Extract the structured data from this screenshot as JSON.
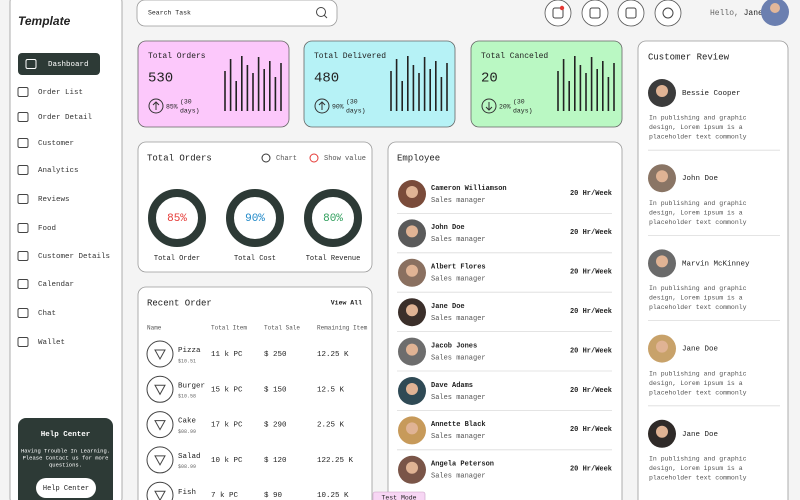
{
  "sidebar": {
    "logo": "Template",
    "nav": [
      "Dashboard",
      "Order List",
      "Order Detail",
      "Customer",
      "Analytics",
      "Reviews",
      "Food",
      "Customer Details",
      "Calendar",
      "Chat",
      "Wallet"
    ],
    "help": {
      "title": "Help Center",
      "lines": [
        "Having Trouble In Learning.",
        "Please Contact us for more",
        "questions."
      ],
      "button": "Help Center"
    }
  },
  "header": {
    "search_placeholder": "Search Task",
    "greeting": "Hello,",
    "user": "Jane"
  },
  "stats": [
    {
      "title": "Total Orders",
      "value": "530",
      "change": "85%",
      "period": [
        "(30",
        "days)"
      ],
      "trend": "up",
      "color": "#fcc8fb"
    },
    {
      "title": "Total Delivered",
      "value": "480",
      "change": "90%",
      "period": [
        "(30",
        "days)"
      ],
      "trend": "up",
      "color": "#b6f2f6"
    },
    {
      "title": "Total Canceled",
      "value": "20",
      "change": "20%",
      "period": [
        "(30",
        "days)"
      ],
      "trend": "down",
      "color": "#baf8c3"
    }
  ],
  "total_orders": {
    "title": "Total Orders",
    "options": [
      "Chart",
      "Show value"
    ],
    "rings": [
      {
        "value": "85%",
        "label": "Total Order",
        "color": "#e53935"
      },
      {
        "value": "90%",
        "label": "Total Cost",
        "color": "#1e88c8"
      },
      {
        "value": "80%",
        "label": "Total Revenue",
        "color": "#2e9e5b"
      }
    ]
  },
  "recent_order": {
    "title": "Recent Order",
    "link": "View All",
    "columns": [
      "Name",
      "Total Item",
      "Total Sale",
      "Remaining Item"
    ],
    "rows": [
      {
        "name": "Pizza",
        "price": "$10.51",
        "items": "11 k PC",
        "sale": "$ 250",
        "remaining": "12.25 K"
      },
      {
        "name": "Burger",
        "price": "$10.58",
        "items": "15 k PC",
        "sale": "$ 150",
        "remaining": "12.5 K"
      },
      {
        "name": "Cake",
        "price": "$08.99",
        "items": "17 k PC",
        "sale": "$ 290",
        "remaining": "2.25 K"
      },
      {
        "name": "Salad",
        "price": "$08.99",
        "items": "10 k PC",
        "sale": "$ 120",
        "remaining": "122.25 K"
      },
      {
        "name": "Fish",
        "items": "7 k PC",
        "sale": "$ 90",
        "remaining": "10.25 K"
      }
    ]
  },
  "employee": {
    "title": "Employee",
    "rows": [
      {
        "name": "Cameron Williamson",
        "role": "Sales manager",
        "hours": "20 Hr/Week"
      },
      {
        "name": "John Doe",
        "role": "Sales manager",
        "hours": "20 Hr/Week"
      },
      {
        "name": "Albert Flores",
        "role": "Sales manager",
        "hours": "20 Hr/Week"
      },
      {
        "name": "Jane Doe",
        "role": "Sales manager",
        "hours": "20 Hr/Week"
      },
      {
        "name": "Jacob Jones",
        "role": "Sales manager",
        "hours": "20 Hr/Week"
      },
      {
        "name": "Dave Adams",
        "role": "Sales manager",
        "hours": "20 Hr/Week"
      },
      {
        "name": "Annette Black",
        "role": "Sales manager",
        "hours": "20 Hr/Week"
      },
      {
        "name": "Angela Peterson",
        "role": "Sales manager",
        "hours": "20 Hr/Week"
      }
    ]
  },
  "reviews": {
    "title": "Customer Review",
    "items": [
      {
        "name": "Bessie Cooper",
        "lines": [
          "In publishing and graphic",
          "design, Lorem ipsum is a",
          "placeholder text commonly"
        ]
      },
      {
        "name": "John Doe",
        "lines": [
          "In publishing and graphic",
          "design, Lorem ipsum is a",
          "placeholder text commonly"
        ]
      },
      {
        "name": "Marvin McKinney",
        "lines": [
          "In publishing and graphic",
          "design, Lorem ipsum is a",
          "placeholder text commonly"
        ]
      },
      {
        "name": "Jane Doe",
        "lines": [
          "In publishing and graphic",
          "design, Lorem ipsum is a",
          "placeholder text commonly"
        ]
      },
      {
        "name": "Jane Doe",
        "lines": [
          "In publishing and graphic",
          "design, Lorem ipsum is a",
          "placeholder text commonly"
        ]
      }
    ]
  },
  "badge": "Test Mode"
}
